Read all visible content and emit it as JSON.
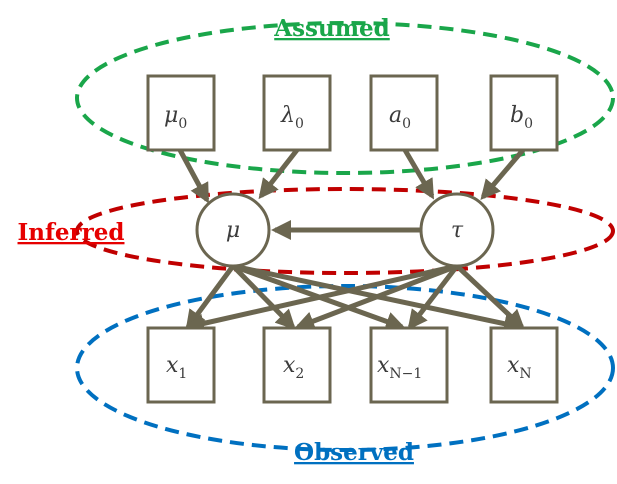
{
  "colors": {
    "assumed": "#1aa64a",
    "inferred": "#c00000",
    "observed": "#0070c0",
    "node_stroke": "#6b6650",
    "edge": "#6b6650"
  },
  "groups": {
    "assumed": {
      "label": "Assumed"
    },
    "inferred": {
      "label": "Inferred"
    },
    "observed": {
      "label": "Observed"
    }
  },
  "nodes": {
    "mu0": {
      "base": "μ",
      "sub": "0"
    },
    "lambda0": {
      "base": "λ",
      "sub": "0"
    },
    "a0": {
      "base": "a",
      "sub": "0"
    },
    "b0": {
      "base": "b",
      "sub": "0"
    },
    "mu": {
      "base": "μ",
      "sub": ""
    },
    "tau": {
      "base": "τ",
      "sub": ""
    },
    "x1": {
      "base": "x",
      "sub": "1"
    },
    "x2": {
      "base": "x",
      "sub": "2"
    },
    "xN1": {
      "base": "x",
      "sub": "N−1"
    },
    "xN": {
      "base": "x",
      "sub": "N"
    }
  }
}
